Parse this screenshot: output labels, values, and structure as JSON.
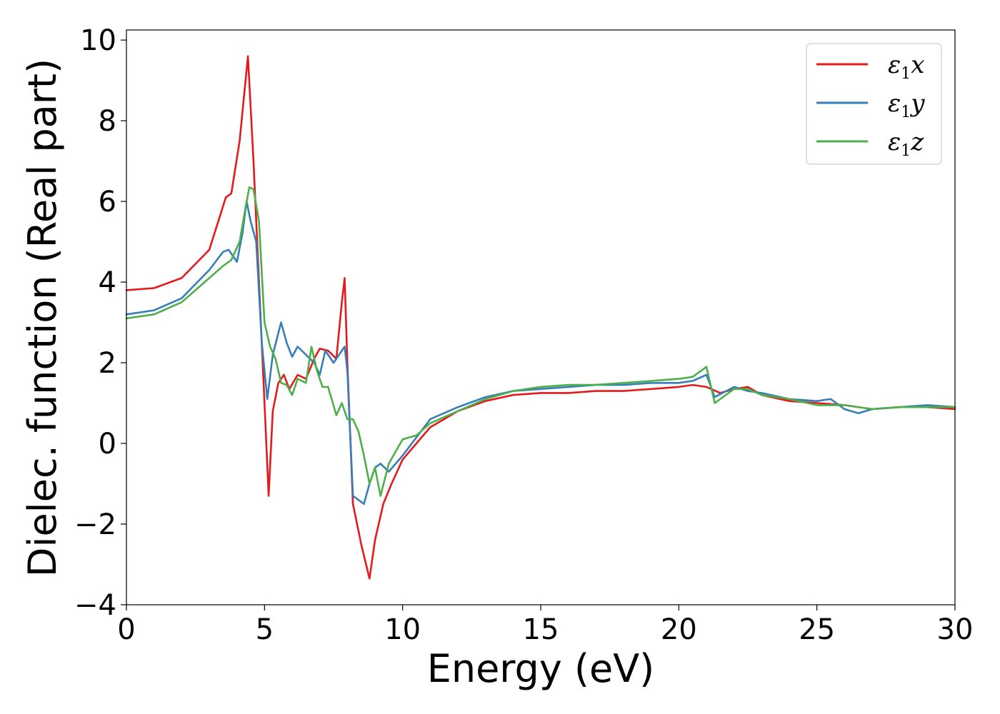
{
  "chart_data": {
    "type": "line",
    "xlabel": "Energy (eV)",
    "ylabel": "Dielec. function (Real part)",
    "xlim": [
      0,
      30
    ],
    "ylim": [
      -4,
      10.25
    ],
    "xticks": [
      0,
      5,
      10,
      15,
      20,
      25,
      30
    ],
    "xtick_labels": [
      "0",
      "5",
      "10",
      "15",
      "20",
      "25",
      "30"
    ],
    "yticks": [
      -4,
      -2,
      0,
      2,
      4,
      6,
      8,
      10
    ],
    "ytick_labels": [
      "−4",
      "−2",
      "0",
      "2",
      "4",
      "6",
      "8",
      "10"
    ],
    "grid": false,
    "legend_position": "top-right",
    "series": [
      {
        "name": "ε1x",
        "legend": {
          "symbol": "ε",
          "sub": "1",
          "var": "x"
        },
        "color": "#e41a1c",
        "x": [
          0,
          1,
          2,
          3,
          3.6,
          3.8,
          4.1,
          4.4,
          4.6,
          4.8,
          5.0,
          5.15,
          5.3,
          5.5,
          5.7,
          5.9,
          6.2,
          6.5,
          6.8,
          7.0,
          7.3,
          7.6,
          7.8,
          7.9,
          8.0,
          8.2,
          8.5,
          8.8,
          9.0,
          9.3,
          9.6,
          10.0,
          10.5,
          11,
          12,
          13,
          14,
          15,
          16,
          17,
          18,
          19,
          20,
          20.5,
          21,
          21.5,
          22,
          22.5,
          23,
          24,
          25,
          26,
          27,
          28,
          29,
          30
        ],
        "y": [
          3.8,
          3.85,
          4.1,
          4.8,
          6.1,
          6.2,
          7.5,
          9.6,
          7.0,
          4.0,
          1.0,
          -1.3,
          0.8,
          1.5,
          1.7,
          1.35,
          1.7,
          1.6,
          2.1,
          2.35,
          2.3,
          2.1,
          3.5,
          4.1,
          2.0,
          -1.5,
          -2.5,
          -3.35,
          -2.4,
          -1.5,
          -1.0,
          -0.4,
          0.0,
          0.4,
          0.8,
          1.05,
          1.2,
          1.25,
          1.25,
          1.3,
          1.3,
          1.35,
          1.4,
          1.45,
          1.4,
          1.25,
          1.35,
          1.4,
          1.2,
          1.05,
          1.0,
          0.95,
          0.85,
          0.9,
          0.9,
          0.85
        ]
      },
      {
        "name": "ε1y",
        "legend": {
          "symbol": "ε",
          "sub": "1",
          "var": "y"
        },
        "color": "#377eb8",
        "x": [
          0,
          1,
          2,
          3,
          3.5,
          3.7,
          4.0,
          4.2,
          4.35,
          4.5,
          4.7,
          4.9,
          5.1,
          5.3,
          5.6,
          5.8,
          6.0,
          6.2,
          6.5,
          6.8,
          7.0,
          7.2,
          7.5,
          7.7,
          7.9,
          8.0,
          8.2,
          8.4,
          8.6,
          8.8,
          9.0,
          9.2,
          9.5,
          10,
          11,
          12,
          13,
          14,
          15,
          16,
          17,
          18,
          19,
          20,
          20.5,
          21,
          21.3,
          22,
          22.5,
          23,
          24,
          25,
          25.5,
          26,
          26.5,
          27,
          28,
          29,
          30
        ],
        "y": [
          3.2,
          3.3,
          3.6,
          4.3,
          4.75,
          4.8,
          4.5,
          5.2,
          6.0,
          5.5,
          5.0,
          2.5,
          1.1,
          2.2,
          3.0,
          2.5,
          2.15,
          2.4,
          2.2,
          2.0,
          1.7,
          2.3,
          2.0,
          2.2,
          2.4,
          1.8,
          -1.3,
          -1.4,
          -1.5,
          -1.0,
          -0.6,
          -0.5,
          -0.7,
          -0.3,
          0.6,
          0.9,
          1.15,
          1.3,
          1.35,
          1.4,
          1.45,
          1.45,
          1.5,
          1.5,
          1.55,
          1.7,
          1.15,
          1.4,
          1.3,
          1.25,
          1.1,
          1.05,
          1.1,
          0.85,
          0.75,
          0.85,
          0.9,
          0.95,
          0.9
        ]
      },
      {
        "name": "ε1z",
        "legend": {
          "symbol": "ε",
          "sub": "1",
          "var": "z"
        },
        "color": "#4daf4a",
        "x": [
          0,
          1,
          2,
          3,
          3.5,
          3.8,
          4.1,
          4.3,
          4.45,
          4.6,
          4.8,
          5.0,
          5.2,
          5.4,
          5.6,
          5.8,
          6.0,
          6.2,
          6.5,
          6.7,
          6.9,
          7.1,
          7.3,
          7.6,
          7.8,
          8.0,
          8.2,
          8.4,
          8.6,
          8.8,
          9.0,
          9.2,
          9.5,
          10,
          10.5,
          11,
          12,
          13,
          14,
          15,
          16,
          17,
          18,
          19,
          20,
          20.5,
          20.8,
          21,
          21.3,
          22,
          22.5,
          23,
          24,
          25,
          26,
          27,
          28,
          29,
          30
        ],
        "y": [
          3.1,
          3.2,
          3.5,
          4.1,
          4.4,
          4.55,
          5.0,
          5.8,
          6.35,
          6.3,
          5.5,
          3.0,
          2.4,
          2.1,
          1.5,
          1.45,
          1.2,
          1.6,
          1.5,
          2.4,
          1.8,
          1.4,
          1.4,
          0.7,
          1.0,
          0.6,
          0.6,
          0.3,
          -0.3,
          -1.0,
          -0.6,
          -1.3,
          -0.5,
          0.1,
          0.2,
          0.5,
          0.8,
          1.1,
          1.3,
          1.4,
          1.45,
          1.45,
          1.5,
          1.55,
          1.6,
          1.65,
          1.8,
          1.9,
          1.0,
          1.35,
          1.35,
          1.2,
          1.1,
          0.95,
          0.95,
          0.85,
          0.9,
          0.9,
          0.9
        ]
      }
    ]
  }
}
